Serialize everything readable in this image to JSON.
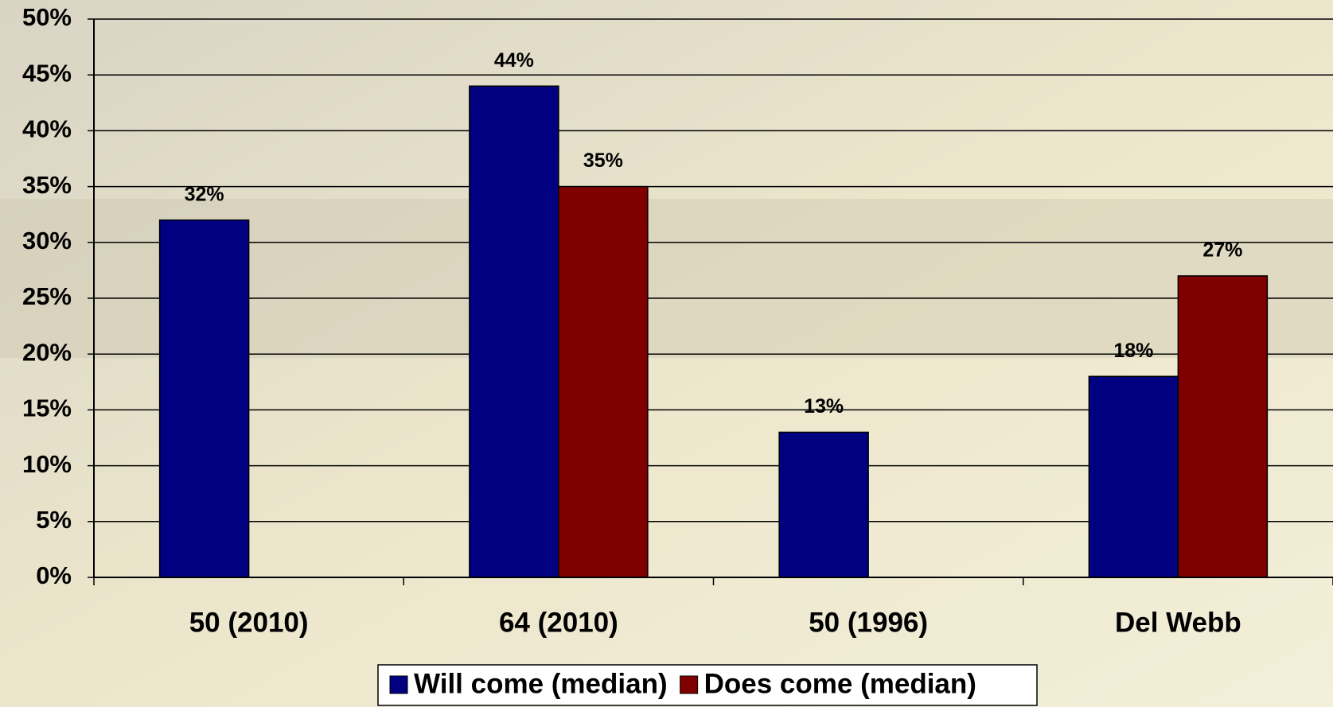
{
  "chart_data": {
    "type": "bar",
    "categories": [
      "50 (2010)",
      "64 (2010)",
      "50 (1996)",
      "Del Webb"
    ],
    "series": [
      {
        "name": "Will come (median)",
        "color": "#000080",
        "values": [
          32,
          44,
          13,
          18
        ],
        "value_labels": [
          "32%",
          "44%",
          "13%",
          "18%"
        ]
      },
      {
        "name": "Does come (median)",
        "color": "#800000",
        "values": [
          null,
          35,
          null,
          27
        ],
        "value_labels": [
          null,
          "35%",
          null,
          "27%"
        ]
      }
    ],
    "ylim": [
      0,
      50
    ],
    "yticks": [
      {
        "value": 0,
        "label": "0%"
      },
      {
        "value": 5,
        "label": "5%"
      },
      {
        "value": 10,
        "label": "10%"
      },
      {
        "value": 15,
        "label": "15%"
      },
      {
        "value": 20,
        "label": "20%"
      },
      {
        "value": 25,
        "label": "25%"
      },
      {
        "value": 30,
        "label": "30%"
      },
      {
        "value": 35,
        "label": "35%"
      },
      {
        "value": 40,
        "label": "40%"
      },
      {
        "value": 45,
        "label": "45%"
      },
      {
        "value": 50,
        "label": "50%"
      }
    ],
    "grid": true,
    "legend": "bottom"
  }
}
